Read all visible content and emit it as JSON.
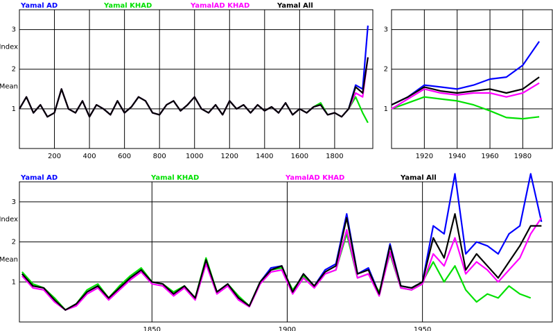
{
  "chart_data": [
    {
      "type": "line",
      "ylabel": [
        "Mean",
        "Index"
      ],
      "legend": "top",
      "grid": true,
      "xlim": [
        0,
        2018
      ],
      "xticks": [
        200,
        400,
        600,
        800,
        1000,
        1200,
        1400,
        1600,
        1800
      ],
      "ylim": [
        0,
        3.5
      ],
      "yticks": [
        1,
        2,
        3
      ],
      "x": [
        0,
        40,
        80,
        120,
        160,
        200,
        240,
        280,
        320,
        360,
        400,
        440,
        480,
        520,
        560,
        600,
        640,
        680,
        720,
        760,
        800,
        840,
        880,
        920,
        960,
        1000,
        1040,
        1080,
        1120,
        1160,
        1200,
        1240,
        1280,
        1320,
        1360,
        1400,
        1440,
        1480,
        1520,
        1560,
        1600,
        1640,
        1680,
        1720,
        1760,
        1800,
        1840,
        1880,
        1920,
        1960,
        1990
      ],
      "series": [
        {
          "name": "Yamal AD",
          "color": "#0000ff",
          "values": [
            1.0,
            1.3,
            0.9,
            1.1,
            0.8,
            0.9,
            1.5,
            1.0,
            0.9,
            1.2,
            0.8,
            1.1,
            1.0,
            0.85,
            1.2,
            0.9,
            1.05,
            1.3,
            1.2,
            0.9,
            0.85,
            1.1,
            1.2,
            0.95,
            1.1,
            1.3,
            1.0,
            0.9,
            1.1,
            0.85,
            1.2,
            1.0,
            1.1,
            0.9,
            1.1,
            0.95,
            1.05,
            0.9,
            1.15,
            0.85,
            1.0,
            0.9,
            1.05,
            1.1,
            0.85,
            0.9,
            0.8,
            1.0,
            1.6,
            1.5,
            3.1
          ]
        },
        {
          "name": "Yamal KHAD",
          "color": "#00e000",
          "values": [
            1.0,
            1.3,
            0.9,
            1.1,
            0.8,
            0.9,
            1.5,
            1.0,
            0.9,
            1.2,
            0.8,
            1.1,
            1.0,
            0.85,
            1.2,
            0.9,
            1.05,
            1.3,
            1.2,
            0.9,
            0.85,
            1.1,
            1.2,
            0.95,
            1.1,
            1.3,
            1.0,
            0.9,
            1.1,
            0.85,
            1.2,
            1.0,
            1.1,
            0.9,
            1.1,
            0.95,
            1.05,
            0.9,
            1.15,
            0.85,
            1.0,
            0.9,
            1.05,
            1.15,
            0.85,
            0.9,
            0.8,
            1.0,
            1.3,
            0.9,
            0.65
          ]
        },
        {
          "name": "YamalAD KHAD",
          "color": "#ff00ff",
          "values": [
            1.0,
            1.3,
            0.9,
            1.1,
            0.8,
            0.9,
            1.5,
            1.0,
            0.9,
            1.2,
            0.8,
            1.1,
            1.0,
            0.85,
            1.2,
            0.9,
            1.05,
            1.3,
            1.2,
            0.9,
            0.85,
            1.1,
            1.2,
            0.95,
            1.1,
            1.3,
            1.0,
            0.9,
            1.1,
            0.85,
            1.2,
            1.0,
            1.1,
            0.9,
            1.1,
            0.95,
            1.05,
            0.9,
            1.15,
            0.85,
            1.0,
            0.9,
            1.05,
            1.1,
            0.85,
            0.9,
            0.8,
            1.0,
            1.4,
            1.3,
            2.3
          ]
        },
        {
          "name": "Yamal All",
          "color": "#000000",
          "values": [
            1.0,
            1.3,
            0.9,
            1.1,
            0.8,
            0.9,
            1.5,
            1.0,
            0.9,
            1.2,
            0.8,
            1.1,
            1.0,
            0.85,
            1.2,
            0.9,
            1.05,
            1.3,
            1.2,
            0.9,
            0.85,
            1.1,
            1.2,
            0.95,
            1.1,
            1.3,
            1.0,
            0.9,
            1.1,
            0.85,
            1.2,
            1.0,
            1.1,
            0.9,
            1.1,
            0.95,
            1.05,
            0.9,
            1.15,
            0.85,
            1.0,
            0.9,
            1.05,
            1.1,
            0.85,
            0.9,
            0.8,
            1.0,
            1.55,
            1.4,
            2.3
          ]
        }
      ]
    },
    {
      "type": "line",
      "grid": true,
      "xlim": [
        1900,
        1998
      ],
      "xticks": [
        1920,
        1940,
        1960,
        1980
      ],
      "ylim": [
        0,
        3.5
      ],
      "yticks": [
        1,
        2,
        3
      ],
      "x": [
        1900,
        1910,
        1920,
        1930,
        1940,
        1950,
        1960,
        1970,
        1980,
        1990
      ],
      "series": [
        {
          "name": "Yamal AD",
          "color": "#0000ff",
          "values": [
            1.1,
            1.3,
            1.6,
            1.55,
            1.5,
            1.6,
            1.75,
            1.8,
            2.1,
            2.7
          ]
        },
        {
          "name": "Yamal KHAD",
          "color": "#00e000",
          "values": [
            1.0,
            1.15,
            1.3,
            1.25,
            1.2,
            1.1,
            0.95,
            0.78,
            0.75,
            0.8
          ]
        },
        {
          "name": "YamalAD KHAD",
          "color": "#ff00ff",
          "values": [
            1.0,
            1.25,
            1.5,
            1.4,
            1.35,
            1.4,
            1.4,
            1.3,
            1.4,
            1.65
          ]
        },
        {
          "name": "Yamal All",
          "color": "#000000",
          "values": [
            1.1,
            1.3,
            1.55,
            1.45,
            1.4,
            1.45,
            1.5,
            1.4,
            1.5,
            1.8
          ]
        }
      ]
    },
    {
      "type": "line",
      "ylabel": [
        "Mean",
        "Index"
      ],
      "legend": "top",
      "grid": true,
      "xlim": [
        1801,
        1998
      ],
      "xticks": [
        1850,
        1900,
        1950
      ],
      "ylim": [
        0,
        3.5
      ],
      "yticks": [
        1,
        2,
        3
      ],
      "x": [
        1802,
        1806,
        1810,
        1814,
        1818,
        1822,
        1826,
        1830,
        1834,
        1838,
        1842,
        1846,
        1850,
        1854,
        1858,
        1862,
        1866,
        1870,
        1874,
        1878,
        1882,
        1886,
        1890,
        1894,
        1898,
        1902,
        1906,
        1910,
        1914,
        1918,
        1922,
        1926,
        1930,
        1934,
        1938,
        1942,
        1946,
        1950,
        1954,
        1958,
        1962,
        1966,
        1970,
        1974,
        1978,
        1982,
        1986,
        1990,
        1994
      ],
      "series": [
        {
          "name": "Yamal AD",
          "color": "#0000ff",
          "values": [
            1.2,
            0.9,
            0.85,
            0.55,
            0.3,
            0.45,
            0.75,
            0.9,
            0.6,
            0.85,
            1.1,
            1.3,
            1.0,
            0.95,
            0.7,
            0.9,
            0.6,
            1.55,
            0.75,
            0.95,
            0.6,
            0.4,
            1.0,
            1.35,
            1.4,
            0.75,
            1.2,
            0.9,
            1.3,
            1.45,
            2.7,
            1.2,
            1.35,
            0.7,
            1.95,
            0.9,
            0.85,
            1.0,
            2.4,
            2.2,
            3.7,
            1.7,
            2.0,
            1.9,
            1.7,
            2.2,
            2.4,
            3.7,
            2.5
          ]
        },
        {
          "name": "Yamal KHAD",
          "color": "#00e000",
          "values": [
            1.25,
            0.95,
            0.85,
            0.6,
            0.3,
            0.45,
            0.8,
            0.95,
            0.6,
            0.9,
            1.15,
            1.35,
            1.0,
            0.95,
            0.75,
            0.9,
            0.6,
            1.6,
            0.75,
            0.95,
            0.65,
            0.4,
            1.0,
            1.3,
            1.35,
            0.8,
            1.15,
            0.9,
            1.2,
            1.3,
            2.2,
            1.1,
            1.2,
            0.75,
            1.7,
            0.85,
            0.8,
            1.0,
            1.5,
            1.0,
            1.4,
            0.8,
            0.5,
            0.7,
            0.6,
            0.9,
            0.7,
            0.6,
            null
          ]
        },
        {
          "name": "YamalAD KHAD",
          "color": "#ff00ff",
          "values": [
            1.15,
            0.85,
            0.8,
            0.5,
            0.3,
            0.4,
            0.7,
            0.85,
            0.55,
            0.8,
            1.05,
            1.25,
            0.95,
            0.9,
            0.65,
            0.85,
            0.55,
            1.45,
            0.7,
            0.9,
            0.55,
            0.38,
            0.95,
            1.25,
            1.3,
            0.7,
            1.1,
            0.85,
            1.2,
            1.3,
            2.3,
            1.1,
            1.2,
            0.65,
            1.75,
            0.85,
            0.8,
            0.95,
            1.7,
            1.4,
            2.1,
            1.2,
            1.5,
            1.3,
            1.0,
            1.3,
            1.6,
            2.2,
            2.6
          ]
        },
        {
          "name": "Yamal All",
          "color": "#000000",
          "values": [
            1.2,
            0.9,
            0.85,
            0.55,
            0.3,
            0.45,
            0.75,
            0.9,
            0.6,
            0.85,
            1.1,
            1.3,
            1.0,
            0.95,
            0.7,
            0.9,
            0.6,
            1.55,
            0.75,
            0.95,
            0.6,
            0.4,
            1.0,
            1.3,
            1.4,
            0.75,
            1.2,
            0.9,
            1.25,
            1.4,
            2.6,
            1.2,
            1.3,
            0.7,
            1.9,
            0.9,
            0.85,
            1.0,
            2.1,
            1.6,
            2.7,
            1.3,
            1.7,
            1.4,
            1.1,
            1.5,
            1.9,
            2.4,
            2.4
          ]
        }
      ]
    }
  ]
}
